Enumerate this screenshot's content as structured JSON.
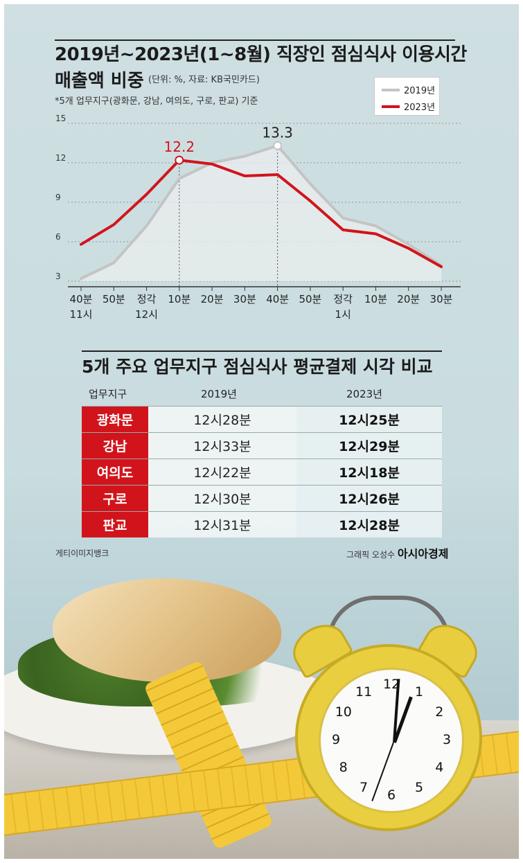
{
  "chart_title_line1": "2019년~2023년(1~8월) 직장인 점심식사 이용시간",
  "chart_title_line2": "매출액 비중",
  "unit_note": "(단위: %, 자료: KB국민카드)",
  "area_note": "*5개 업무지구(광화문, 강남, 여의도, 구로, 판교) 기준",
  "chart_data": {
    "type": "line",
    "title": "2019년~2023년(1~8월) 직장인 점심식사 이용시간 매출액 비중",
    "categories": [
      "40분",
      "50분",
      "정각",
      "10분",
      "20분",
      "30분",
      "40분",
      "50분",
      "정각",
      "10분",
      "20분",
      "30분"
    ],
    "category_sublabels": [
      "11시",
      "",
      "12시",
      "",
      "",
      "",
      "",
      "",
      "1시",
      "",
      "",
      ""
    ],
    "ylim": [
      3,
      15
    ],
    "yticks": [
      3,
      6,
      9,
      12,
      15
    ],
    "legend_position": "top-right",
    "grid": true,
    "series": [
      {
        "name": "2019년",
        "color": "#c4c4c4",
        "values": [
          3.2,
          4.4,
          7.2,
          10.8,
          12.0,
          12.5,
          13.3,
          10.4,
          7.8,
          7.2,
          5.8,
          4.2
        ]
      },
      {
        "name": "2023년",
        "color": "#d1141b",
        "values": [
          5.8,
          7.3,
          9.6,
          12.2,
          11.9,
          11.0,
          11.1,
          9.1,
          6.9,
          6.6,
          5.5,
          4.1
        ]
      }
    ],
    "annotations": [
      {
        "series": "2023년",
        "index": 3,
        "text": "12.2"
      },
      {
        "series": "2019년",
        "index": 6,
        "text": "13.3"
      }
    ]
  },
  "table": {
    "title": "5개 주요 업무지구 점심식사 평균결제 시각 비교",
    "headers": [
      "업무지구",
      "2019년",
      "2023년"
    ],
    "rows": [
      {
        "district": "광화문",
        "y2019": "12시28분",
        "y2023": "12시25분"
      },
      {
        "district": "강남",
        "y2019": "12시33분",
        "y2023": "12시29분"
      },
      {
        "district": "여의도",
        "y2019": "12시22분",
        "y2023": "12시18분"
      },
      {
        "district": "구로",
        "y2019": "12시30분",
        "y2023": "12시26분"
      },
      {
        "district": "판교",
        "y2019": "12시31분",
        "y2023": "12시28분"
      }
    ]
  },
  "credit_left": "게티이미지뱅크",
  "credit_right_prefix": "그래픽 오성수",
  "credit_right_brand": "아시아경제",
  "clock_numbers": [
    "12",
    "1",
    "2",
    "3",
    "4",
    "5",
    "6",
    "7",
    "8",
    "9",
    "10",
    "11"
  ]
}
